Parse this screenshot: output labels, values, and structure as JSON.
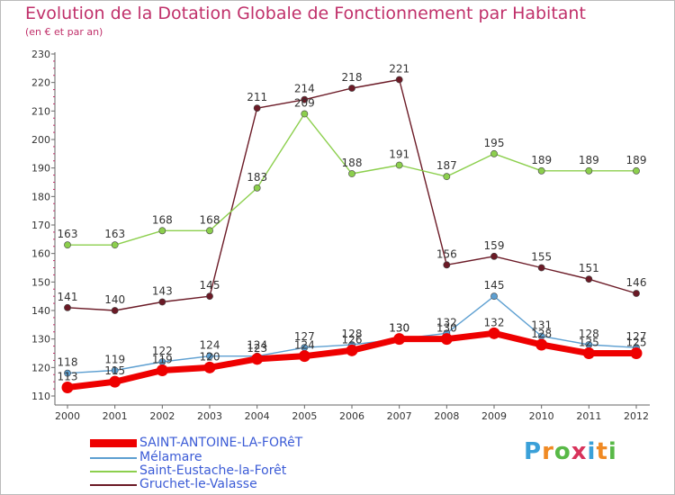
{
  "chart_data": {
    "type": "line",
    "title": "Evolution de la Dotation Globale de Fonctionnement par Habitant",
    "subtitle": "(en € et par an)",
    "xlabel": "",
    "ylabel": "",
    "ylim": [
      110,
      230
    ],
    "yticks": [
      110,
      120,
      130,
      140,
      150,
      160,
      170,
      180,
      190,
      200,
      210,
      220,
      230
    ],
    "categories": [
      "2000",
      "2001",
      "2002",
      "2003",
      "2004",
      "2005",
      "2006",
      "2007",
      "2008",
      "2009",
      "2010",
      "2011",
      "2012"
    ],
    "series": [
      {
        "name": "Gruchet-le-Valasse",
        "color": "#6b1a26",
        "values": [
          141,
          140,
          143,
          145,
          211,
          214,
          218,
          221,
          156,
          159,
          155,
          151,
          146
        ]
      },
      {
        "name": "Saint-Eustache-la-Forêt",
        "color": "#8ccf4d",
        "values": [
          163,
          163,
          168,
          168,
          183,
          209,
          188,
          191,
          187,
          195,
          189,
          189,
          189
        ]
      },
      {
        "name": "Mélamare",
        "color": "#5d9fd1",
        "values": [
          118,
          119,
          122,
          124,
          124,
          127,
          128,
          130,
          132,
          145,
          131,
          128,
          127
        ]
      },
      {
        "name": "SAINT-ANTOINE-LA-FORêT",
        "color": "#ee0000",
        "values": [
          113,
          115,
          119,
          120,
          123,
          124,
          126,
          130,
          130,
          132,
          128,
          125,
          125
        ]
      }
    ],
    "legend": [
      {
        "name": "SAINT-ANTOINE-LA-FORêT",
        "color": "#ee0000",
        "text_color": "#3b5bd6"
      },
      {
        "name": "Mélamare",
        "color": "#5d9fd1",
        "text_color": "#3b5bd6"
      },
      {
        "name": "Saint-Eustache-la-Forêt",
        "color": "#8ccf4d",
        "text_color": "#3b5bd6"
      },
      {
        "name": "Gruchet-le-Valasse",
        "color": "#6b1a26",
        "text_color": "#3b5bd6"
      }
    ],
    "legend_position": "bottom-left",
    "grid": false
  },
  "brand": {
    "letters": [
      "P",
      "r",
      "o",
      "x",
      "i",
      "t",
      "i"
    ],
    "colors": [
      "#3aa0d8",
      "#f08a24",
      "#58b947",
      "#d8335b",
      "#3aa0d8",
      "#f08a24",
      "#58b947"
    ]
  }
}
